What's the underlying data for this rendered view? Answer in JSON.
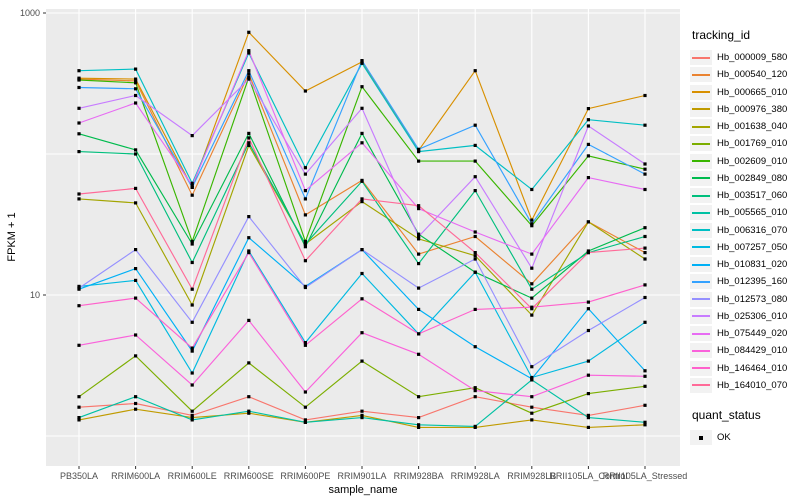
{
  "legend": {
    "tracking_title": "tracking_id",
    "quant_title": "quant_status",
    "quant_items": [
      "OK"
    ]
  },
  "chart_data": {
    "type": "line",
    "title": "",
    "xlabel": "sample_name",
    "ylabel": "FPKM + 1",
    "y_scale": "log10",
    "ylim": [
      0.6,
      1100
    ],
    "y_tick_labels": [
      "1000",
      "10"
    ],
    "y_tick_values": [
      1000,
      10
    ],
    "y_minor_gridline_values": [
      100,
      1
    ],
    "grid": true,
    "panel_background": "#EBEBEB",
    "gridline_color": "#FFFFFF",
    "tick_label_color": "#4D4D4D",
    "marker": "black-square",
    "legend_position": "right",
    "categories": [
      "PB350LA",
      "RRIM600LA",
      "RRIM600LE",
      "RRIM600SE",
      "RRIM600PE",
      "RRIM901LA",
      "RRIM928BA",
      "RRIM928LA",
      "RRIM928LB",
      "RRII105LA_Control",
      "RRII105LA_Stressed"
    ],
    "series": [
      {
        "name": "Hb_000009_580",
        "color": "#F8766D",
        "values": [
          1.6,
          1.7,
          1.4,
          1.9,
          1.3,
          1.5,
          1.35,
          1.9,
          1.6,
          1.4,
          1.65
        ]
      },
      {
        "name": "Hb_000540_120",
        "color": "#EA8331",
        "values": [
          340,
          330,
          51,
          370,
          37,
          65,
          19.5,
          26,
          12,
          33,
          20
        ]
      },
      {
        "name": "Hb_000665_010",
        "color": "#D89000",
        "values": [
          345,
          340,
          58,
          730,
          280,
          450,
          106,
          390,
          34,
          210,
          260
        ]
      },
      {
        "name": "Hb_000976_380",
        "color": "#C09B00",
        "values": [
          1.3,
          1.55,
          1.35,
          1.45,
          1.25,
          1.4,
          1.15,
          1.15,
          1.3,
          1.15,
          1.2
        ]
      },
      {
        "name": "Hb_001638_040",
        "color": "#A3A500",
        "values": [
          48,
          45,
          8.5,
          115,
          23,
          46,
          25,
          19,
          7.2,
          33,
          18
        ]
      },
      {
        "name": "Hb_001769_010",
        "color": "#7CAE00",
        "values": [
          1.9,
          3.7,
          1.5,
          3.3,
          1.6,
          3.4,
          1.9,
          2.2,
          1.45,
          2.0,
          2.25
        ]
      },
      {
        "name": "Hb_002609_010",
        "color": "#39B600",
        "values": [
          335,
          320,
          24,
          350,
          24,
          300,
          89,
          89,
          31,
          97,
          78
        ]
      },
      {
        "name": "Hb_002849_080",
        "color": "#00BB4E",
        "values": [
          139,
          107,
          23,
          140,
          22,
          140,
          27,
          14.5,
          9.5,
          20.5,
          30
        ]
      },
      {
        "name": "Hb_003517_060",
        "color": "#00BF7D",
        "values": [
          104,
          100,
          17,
          120,
          23,
          64,
          16.7,
          55,
          11,
          20,
          26
        ]
      },
      {
        "name": "Hb_005565_010",
        "color": "#00C1A3",
        "values": [
          1.35,
          1.9,
          1.3,
          1.5,
          1.25,
          1.35,
          1.2,
          1.17,
          2.5,
          1.35,
          1.25
        ]
      },
      {
        "name": "Hb_006316_070",
        "color": "#00BFC4",
        "values": [
          390,
          400,
          62,
          520,
          80,
          440,
          104,
          115,
          56,
          175,
          160
        ]
      },
      {
        "name": "Hb_007257_050",
        "color": "#00BAE0",
        "values": [
          11.5,
          12.7,
          2.8,
          20.5,
          4.6,
          14.2,
          5.3,
          14.5,
          2.6,
          3.4,
          6.4
        ]
      },
      {
        "name": "Hb_010831_020",
        "color": "#00B0F6",
        "values": [
          11,
          15.4,
          4.0,
          25.5,
          11.5,
          21,
          7.9,
          4.3,
          2.55,
          8.0,
          2.9
        ]
      },
      {
        "name": "Hb_012395_160",
        "color": "#35A2FF",
        "values": [
          296,
          290,
          58,
          390,
          48,
          460,
          108,
          160,
          32,
          117,
          72
        ]
      },
      {
        "name": "Hb_012573_080",
        "color": "#9590FF",
        "values": [
          11.2,
          21,
          6.4,
          36,
          11.3,
          21,
          11.2,
          18,
          3.1,
          5.6,
          9.6
        ]
      },
      {
        "name": "Hb_025306_010",
        "color": "#C77CFF",
        "values": [
          211,
          260,
          135,
          340,
          72,
          211,
          26,
          69,
          15.5,
          158,
          85
        ]
      },
      {
        "name": "Hb_075449_020",
        "color": "#E76BF3",
        "values": [
          166,
          230,
          60,
          540,
          55,
          120,
          41,
          28,
          19.5,
          68,
          56
        ]
      },
      {
        "name": "Hb_084429_010",
        "color": "#FA62DB",
        "values": [
          4.4,
          5.2,
          2.3,
          6.6,
          2.05,
          5.4,
          3.8,
          2.1,
          1.9,
          2.7,
          2.65
        ]
      },
      {
        "name": "Hb_146464_010",
        "color": "#FF61CC",
        "values": [
          8.4,
          9.5,
          4.2,
          20,
          4.4,
          9.4,
          5.3,
          7.9,
          8.2,
          8.9,
          11.8
        ]
      },
      {
        "name": "Hb_164010_070",
        "color": "#FF6A98",
        "values": [
          52,
          57,
          11,
          130,
          17.5,
          48,
          43,
          20,
          8.0,
          20,
          21.5
        ]
      }
    ]
  }
}
